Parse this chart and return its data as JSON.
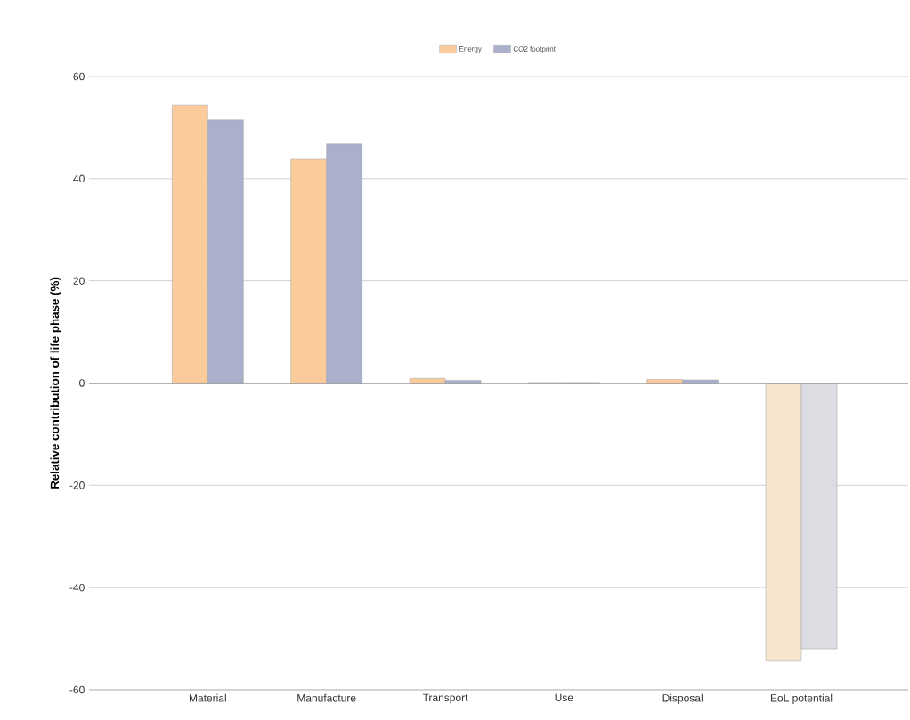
{
  "chart_data": {
    "type": "bar",
    "ylabel": "Relative contribution of life phase (%)",
    "categories": [
      "Material",
      "Manufacture",
      "Transport",
      "Use",
      "Disposal",
      "EoL potential"
    ],
    "series": [
      {
        "name": "Energy",
        "color": "#fbcb9c",
        "colors": [
          "#fbcb9c",
          "#fbcb9c",
          "#fbcb9c",
          "#fbcb9c",
          "#fbcb9c",
          "#f6e6cf"
        ],
        "values": [
          54.4,
          43.8,
          0.9,
          0.1,
          0.7,
          -54.4
        ]
      },
      {
        "name": "CO2 footprint",
        "color": "#aab0cc",
        "colors": [
          "#aab0cc",
          "#aab0cc",
          "#aab0cc",
          "#aab0cc",
          "#aab0cc",
          "#dcdde3"
        ],
        "values": [
          51.5,
          46.8,
          0.5,
          0.1,
          0.6,
          -52
        ]
      }
    ],
    "ylim": [
      -60,
      60
    ],
    "yticks": [
      -60,
      -40,
      -20,
      0,
      20,
      40,
      60
    ],
    "grid": "y",
    "legend": "top"
  }
}
